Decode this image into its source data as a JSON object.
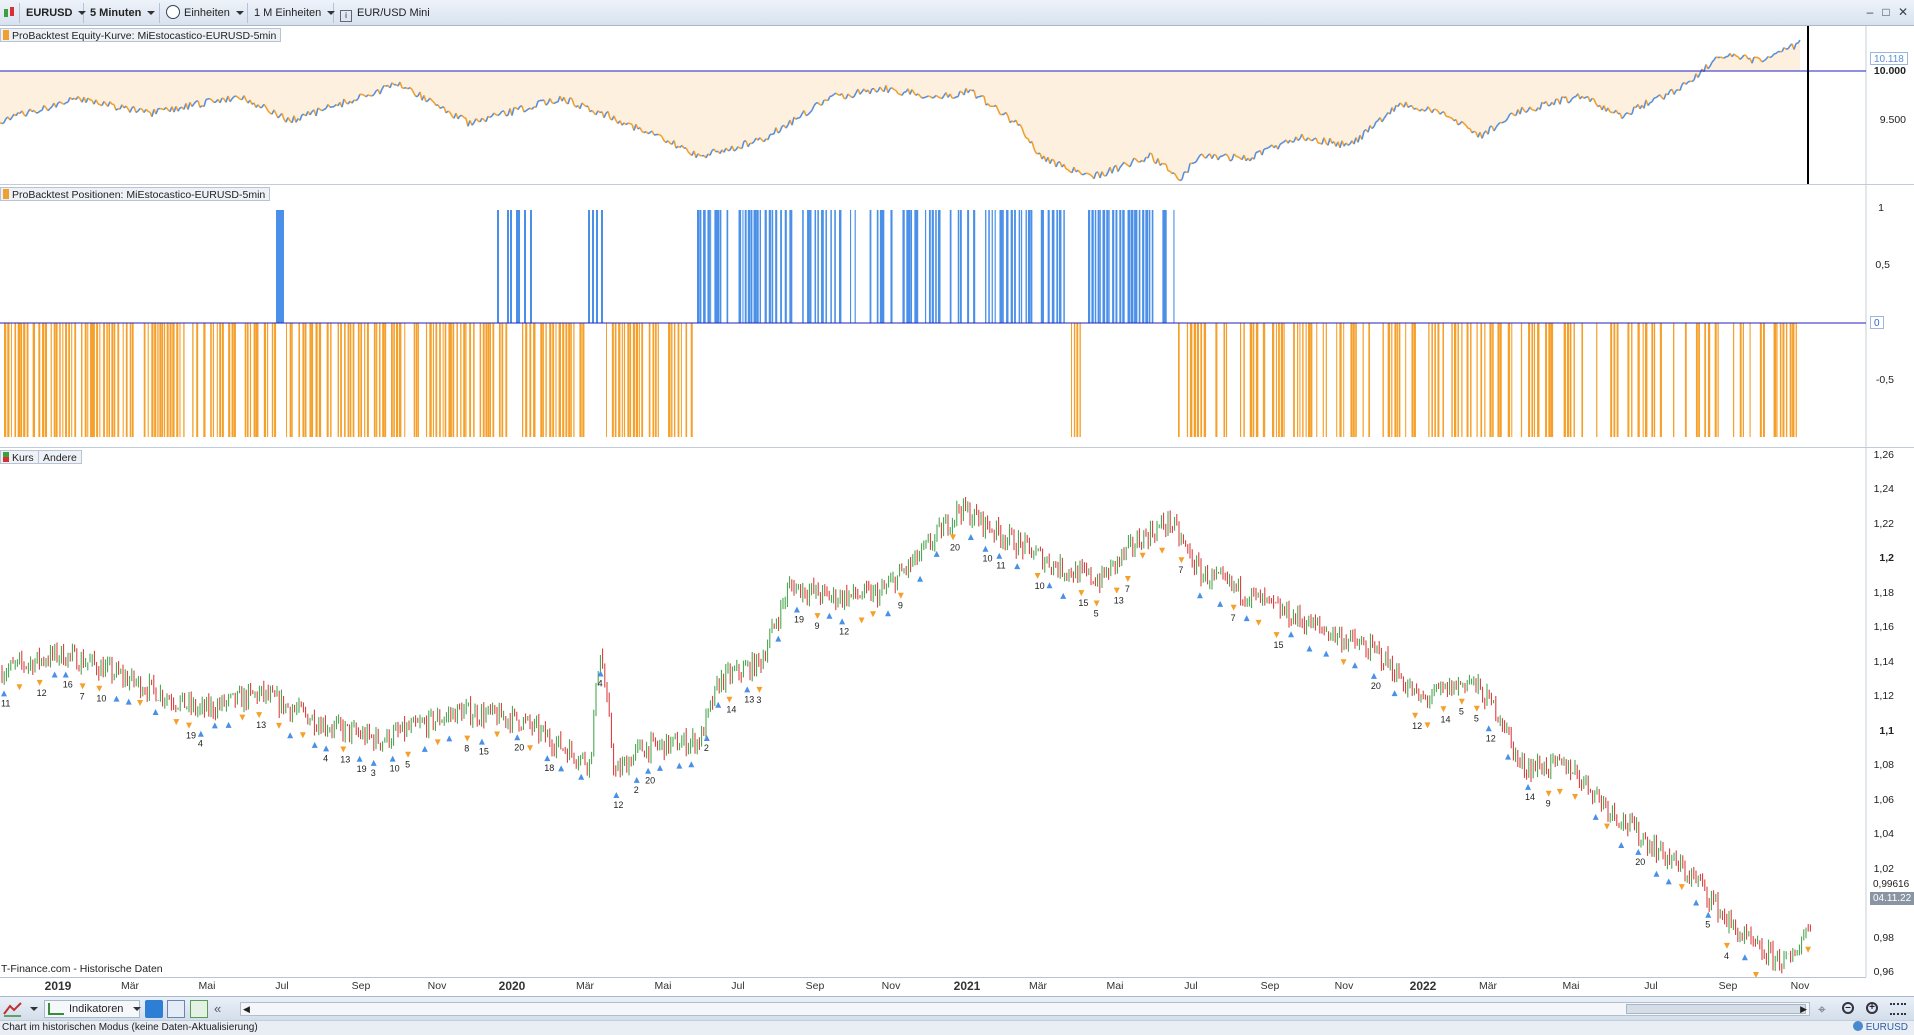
{
  "toolbar": {
    "symbol": "EURUSD",
    "interval": "5 Minuten",
    "units_label": "Einheiten",
    "units_count": "1 M Einheiten",
    "instrument": "EUR/USD Mini"
  },
  "colors": {
    "equity_line": "#5b8fd6",
    "equity_down": "#f0a030",
    "equity_fill": "#fdf0df",
    "long_bar": "#4a90e8",
    "short_bar": "#f5a02a",
    "up_candle": "#3aa040",
    "down_candle": "#d83030",
    "zero_line": "#2020c0"
  },
  "equity_panel": {
    "label": "ProBacktest Equity-Kurve: MiEstocastico-EURUSD-5min",
    "current_value": "10.118",
    "ticks": [
      "10.000",
      "9.500"
    ]
  },
  "positions_panel": {
    "label": "ProBacktest Positionen: MiEstocastico-EURUSD-5min",
    "current_value": "0",
    "ticks": [
      "1",
      "0,5",
      "-0,5"
    ]
  },
  "price_panel": {
    "label": "Kurs",
    "label2": "Andere",
    "current_price": "0,99616",
    "current_date": "04.11.22",
    "ticks": [
      "1,26",
      "1,24",
      "1,22",
      "1,2",
      "1,18",
      "1,16",
      "1,14",
      "1,12",
      "1,1",
      "1,08",
      "1,06",
      "1,04",
      "1,02",
      "0,98",
      "0,96"
    ],
    "source": "T-Finance.com - Historische Daten"
  },
  "time_axis": [
    {
      "label": "2019",
      "year": true
    },
    {
      "label": "Mär"
    },
    {
      "label": "Mai"
    },
    {
      "label": "Jul"
    },
    {
      "label": "Sep"
    },
    {
      "label": "Nov"
    },
    {
      "label": "2020",
      "year": true
    },
    {
      "label": "Mär"
    },
    {
      "label": "Mai"
    },
    {
      "label": "Jul"
    },
    {
      "label": "Sep"
    },
    {
      "label": "Nov"
    },
    {
      "label": "2021",
      "year": true
    },
    {
      "label": "Mär"
    },
    {
      "label": "Mai"
    },
    {
      "label": "Jul"
    },
    {
      "label": "Sep"
    },
    {
      "label": "Nov"
    },
    {
      "label": "2022",
      "year": true
    },
    {
      "label": "Mär"
    },
    {
      "label": "Mai"
    },
    {
      "label": "Jul"
    },
    {
      "label": "Sep"
    },
    {
      "label": "Nov"
    }
  ],
  "bottom": {
    "indicators": "Indikatoren",
    "status": "Chart im historischen Modus (keine Daten-Aktualisierung)",
    "symbol": "EURUSD"
  }
}
